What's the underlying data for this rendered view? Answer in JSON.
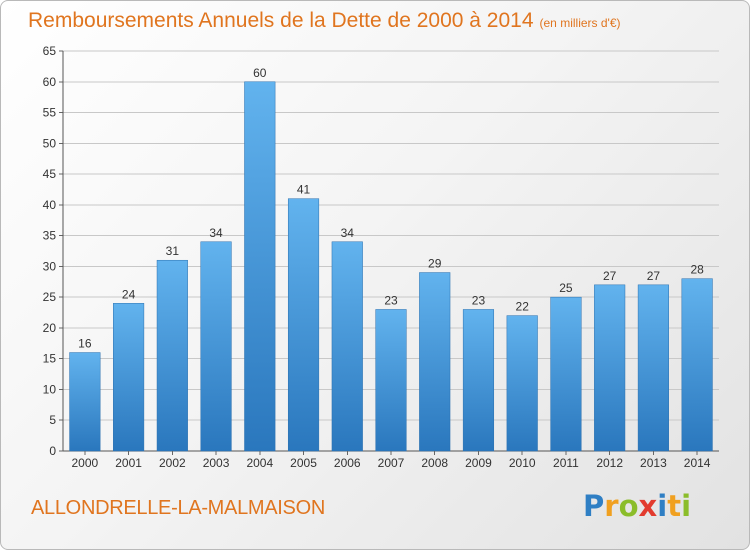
{
  "chart_data": {
    "type": "bar",
    "title": "Remboursements Annuels de la Dette de 2000 à 2014",
    "subtitle": "(en milliers d'€)",
    "categories": [
      "2000",
      "2001",
      "2002",
      "2003",
      "2004",
      "2005",
      "2006",
      "2007",
      "2008",
      "2009",
      "2010",
      "2011",
      "2012",
      "2013",
      "2014"
    ],
    "values": [
      16,
      24,
      31,
      34,
      60,
      41,
      34,
      23,
      29,
      23,
      22,
      25,
      27,
      27,
      28
    ],
    "xlabel": "",
    "ylabel": "",
    "ylim": [
      0,
      65
    ],
    "yticks": [
      0,
      5,
      10,
      15,
      20,
      25,
      30,
      35,
      40,
      45,
      50,
      55,
      60,
      65
    ],
    "grid": true,
    "legend": "none",
    "bar_color": "#4a9fe0"
  },
  "footer": {
    "city": "ALLONDRELLE-LA-MALMAISON",
    "logo_letters": [
      {
        "ch": "P",
        "color": "#2f7fc4"
      },
      {
        "ch": "r",
        "color": "#f0a020"
      },
      {
        "ch": "o",
        "color": "#8bbd2a"
      },
      {
        "ch": "x",
        "color": "#e23b2e"
      },
      {
        "ch": "i",
        "color": "#2f7fc4"
      },
      {
        "ch": "t",
        "color": "#f0a020"
      },
      {
        "ch": "i",
        "color": "#8bbd2a"
      }
    ]
  }
}
